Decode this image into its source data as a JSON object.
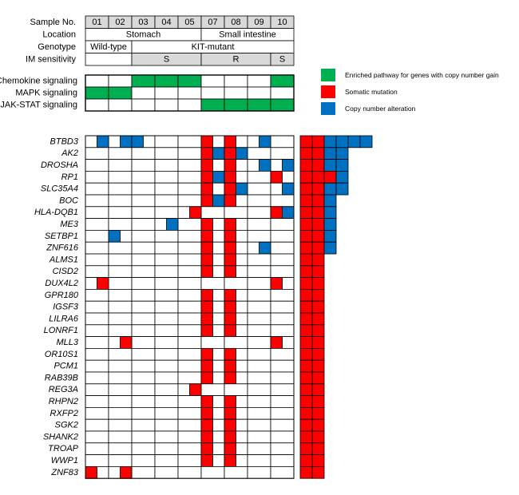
{
  "header": {
    "labels": {
      "sample": "Sample No.",
      "location": "Location",
      "genotype": "Genotype",
      "im": "IM sensitivity"
    },
    "samples": [
      "01",
      "02",
      "03",
      "04",
      "05",
      "07",
      "08",
      "09",
      "10"
    ],
    "location": [
      {
        "label": "Stomach",
        "from": 0,
        "to": 4
      },
      {
        "label": "Small intestine",
        "from": 5,
        "to": 8
      }
    ],
    "genotype": [
      {
        "label": "Wild-type",
        "from": 0,
        "to": 1
      },
      {
        "label": "KIT-mutant",
        "from": 2,
        "to": 8
      }
    ],
    "im_sensitivity": [
      {
        "label": "",
        "from": 0,
        "to": 1
      },
      {
        "label": "S",
        "from": 2,
        "to": 4
      },
      {
        "label": "R",
        "from": 5,
        "to": 7
      },
      {
        "label": "S",
        "from": 8,
        "to": 8
      }
    ]
  },
  "pathways": [
    {
      "name": "Chemokine signaling",
      "enriched": [
        0,
        0,
        1,
        1,
        1,
        0,
        0,
        0,
        1
      ]
    },
    {
      "name": "MAPK signaling",
      "enriched": [
        1,
        1,
        0,
        0,
        0,
        0,
        0,
        0,
        0
      ]
    },
    {
      "name": "JAK-STAT signaling",
      "enriched": [
        0,
        0,
        0,
        0,
        0,
        1,
        1,
        1,
        1
      ]
    }
  ],
  "legend": [
    {
      "key": "enriched",
      "color": "#00b050",
      "label": "Enriched pathway for genes with copy number gain"
    },
    {
      "key": "mutation",
      "color": "#ff0000",
      "label": "Somatic mutation"
    },
    {
      "key": "cna",
      "color": "#0070c0",
      "label": "Copy number alteration"
    }
  ],
  "colors": {
    "mutation": "#ff0000",
    "cna": "#0070c0",
    "enriched": "#00b050"
  },
  "genes": [
    {
      "name": "BTBD3",
      "cells": "0C0C0C02C0",
      "bar": "MMCCCC"
    },
    {
      "name": "AK2",
      "cells": "00000MCMC00",
      "bar": "MMCC"
    },
    {
      "name": "DROSHA",
      "cells": "00000M0M0CC",
      "bar": "MMCC"
    },
    {
      "name": "RP1",
      "cells": "00000MCM0M0",
      "bar": "MMCM"
    },
    {
      "name": "SLC35A4",
      "cells": "00000M0MC0C",
      "bar": "MMCC"
    },
    {
      "name": "BOC",
      "cells": "00000MCM000",
      "bar": "MMC"
    },
    {
      "name": "HLA-DQB1",
      "cells": "000M00000MC",
      "bar": "MMC"
    },
    {
      "name": "ME3",
      "cells": "000C0M0M000",
      "bar": "MMC"
    },
    {
      "name": "SETBP1",
      "cells": "00C00M0M000",
      "bar": "MMC"
    },
    {
      "name": "ZNF616",
      "cells": "00000M0MC00",
      "bar": "MMC"
    },
    {
      "name": "ALMS1",
      "cells": "00000M0M000",
      "bar": "MM"
    },
    {
      "name": "CISD2",
      "cells": "00000M0M000",
      "bar": "MM"
    },
    {
      "name": "DUX4L2",
      "cells": "0M000000M00",
      "bar": "MM"
    },
    {
      "name": "GPR180",
      "cells": "00000M0M000",
      "bar": "MM"
    },
    {
      "name": "IGSF3",
      "cells": "00000M0M000",
      "bar": "MM"
    },
    {
      "name": "LILRA6",
      "cells": "00000M0M000",
      "bar": "MM"
    },
    {
      "name": "LONRF1",
      "cells": "00000M0M000",
      "bar": "MM"
    },
    {
      "name": "MLL3",
      "cells": "00M00000M00",
      "bar": "MM"
    },
    {
      "name": "OR10S1",
      "cells": "00000M0M000",
      "bar": "MM"
    },
    {
      "name": "PCM1",
      "cells": "00000M0M000",
      "bar": "MM"
    },
    {
      "name": "RAB39B",
      "cells": "00000M0M000",
      "bar": "MM"
    },
    {
      "name": "REG3A",
      "cells": "000M0000000",
      "bar": "MM"
    },
    {
      "name": "RHPN2",
      "cells": "00000M0M000",
      "bar": "MM"
    },
    {
      "name": "RXFP2",
      "cells": "00000M0M000",
      "bar": "MM"
    },
    {
      "name": "SGK2",
      "cells": "00000M0M000",
      "bar": "MM"
    },
    {
      "name": "SHANK2",
      "cells": "00000M0M000",
      "bar": "MM"
    },
    {
      "name": "TROAP",
      "cells": "00000M0M000",
      "bar": "MM"
    },
    {
      "name": "WWP1",
      "cells": "00000M0M000",
      "bar": "MM"
    },
    {
      "name": "ZNF83",
      "cells": "M0M00000000",
      "bar": "MM"
    }
  ],
  "gene_matrix": [
    [
      "",
      "C",
      "",
      "C",
      "",
      "",
      "C",
      "M",
      "",
      "M",
      "",
      "C",
      "",
      ""
    ],
    [
      "",
      "",
      "",
      "",
      "",
      "",
      "",
      "M",
      "C",
      "M",
      "C",
      "",
      "",
      ""
    ],
    [
      "",
      "",
      "",
      "",
      "",
      "",
      "",
      "M",
      "",
      "M",
      "",
      "C",
      "",
      "C"
    ],
    [
      "",
      "",
      "",
      "",
      "",
      "",
      "",
      "M",
      "C",
      "M",
      "",
      "",
      "M",
      ""
    ],
    [
      "",
      "",
      "",
      "",
      "",
      "",
      "",
      "M",
      "",
      "M",
      "C",
      "",
      "",
      "C"
    ],
    [
      "",
      "",
      "",
      "",
      "",
      "",
      "",
      "M",
      "C",
      "M",
      "",
      "",
      "",
      ""
    ],
    [
      "",
      "",
      "",
      "",
      "",
      "M",
      "",
      "",
      "",
      "",
      "",
      "",
      "M",
      "C"
    ],
    [
      "",
      "",
      "",
      "",
      "C",
      "",
      "",
      "M",
      "",
      "M",
      "",
      "",
      "",
      ""
    ],
    [
      "",
      "",
      "C",
      "",
      "",
      "",
      "",
      "M",
      "",
      "M",
      "",
      "",
      "",
      ""
    ],
    [
      "",
      "",
      "",
      "",
      "",
      "",
      "",
      "M",
      "",
      "M",
      "",
      "C",
      "",
      ""
    ],
    [
      "",
      "",
      "",
      "",
      "",
      "",
      "",
      "M",
      "",
      "M",
      "",
      "",
      "",
      ""
    ],
    [
      "",
      "",
      "",
      "",
      "",
      "",
      "",
      "M",
      "",
      "M",
      "",
      "",
      "",
      ""
    ],
    [
      "",
      "M",
      "",
      "",
      "",
      "",
      "",
      "",
      "",
      "",
      "",
      "",
      "M",
      ""
    ],
    [
      "",
      "",
      "",
      "",
      "",
      "",
      "",
      "M",
      "",
      "M",
      "",
      "",
      "",
      ""
    ],
    [
      "",
      "",
      "",
      "",
      "",
      "",
      "",
      "M",
      "",
      "M",
      "",
      "",
      "",
      ""
    ],
    [
      "",
      "",
      "",
      "",
      "",
      "",
      "",
      "M",
      "",
      "M",
      "",
      "",
      "",
      ""
    ],
    [
      "",
      "",
      "",
      "",
      "",
      "",
      "",
      "M",
      "",
      "M",
      "",
      "",
      "",
      ""
    ],
    [
      "",
      "",
      "",
      "M",
      "",
      "",
      "",
      "",
      "",
      "",
      "",
      "",
      "M",
      ""
    ],
    [
      "",
      "",
      "",
      "",
      "",
      "",
      "",
      "M",
      "",
      "M",
      "",
      "",
      "",
      ""
    ],
    [
      "",
      "",
      "",
      "",
      "",
      "",
      "",
      "M",
      "",
      "M",
      "",
      "",
      "",
      ""
    ],
    [
      "",
      "",
      "",
      "",
      "",
      "",
      "",
      "M",
      "",
      "M",
      "",
      "",
      "",
      ""
    ],
    [
      "",
      "",
      "",
      "",
      "",
      "M",
      "",
      "",
      "",
      "",
      "",
      "",
      "",
      ""
    ],
    [
      "",
      "",
      "",
      "",
      "",
      "",
      "",
      "M",
      "",
      "M",
      "",
      "",
      "",
      ""
    ],
    [
      "",
      "",
      "",
      "",
      "",
      "",
      "",
      "M",
      "",
      "M",
      "",
      "",
      "",
      ""
    ],
    [
      "",
      "",
      "",
      "",
      "",
      "",
      "",
      "M",
      "",
      "M",
      "",
      "",
      "",
      ""
    ],
    [
      "",
      "",
      "",
      "",
      "",
      "",
      "",
      "M",
      "",
      "M",
      "",
      "",
      "",
      ""
    ],
    [
      "",
      "",
      "",
      "",
      "",
      "",
      "",
      "M",
      "",
      "M",
      "",
      "",
      "",
      ""
    ],
    [
      "",
      "",
      "",
      "",
      "",
      "",
      "",
      "M",
      "",
      "M",
      "",
      "",
      "",
      ""
    ],
    [
      "M",
      "",
      "",
      "M",
      "",
      "",
      "",
      "",
      "",
      "",
      "",
      "",
      "",
      ""
    ]
  ],
  "summary_bars": [
    "MMCCCC",
    "MMCC",
    "MMCC",
    "MMMC",
    "MMCC",
    "MMC",
    "MMC",
    "MMC",
    "MMC",
    "MMC",
    "MM",
    "MM",
    "MM",
    "MM",
    "MM",
    "MM",
    "MM",
    "MM",
    "MM",
    "MM",
    "MM",
    "MM",
    "MM",
    "MM",
    "MM",
    "MM",
    "MM",
    "MM",
    "MM"
  ]
}
